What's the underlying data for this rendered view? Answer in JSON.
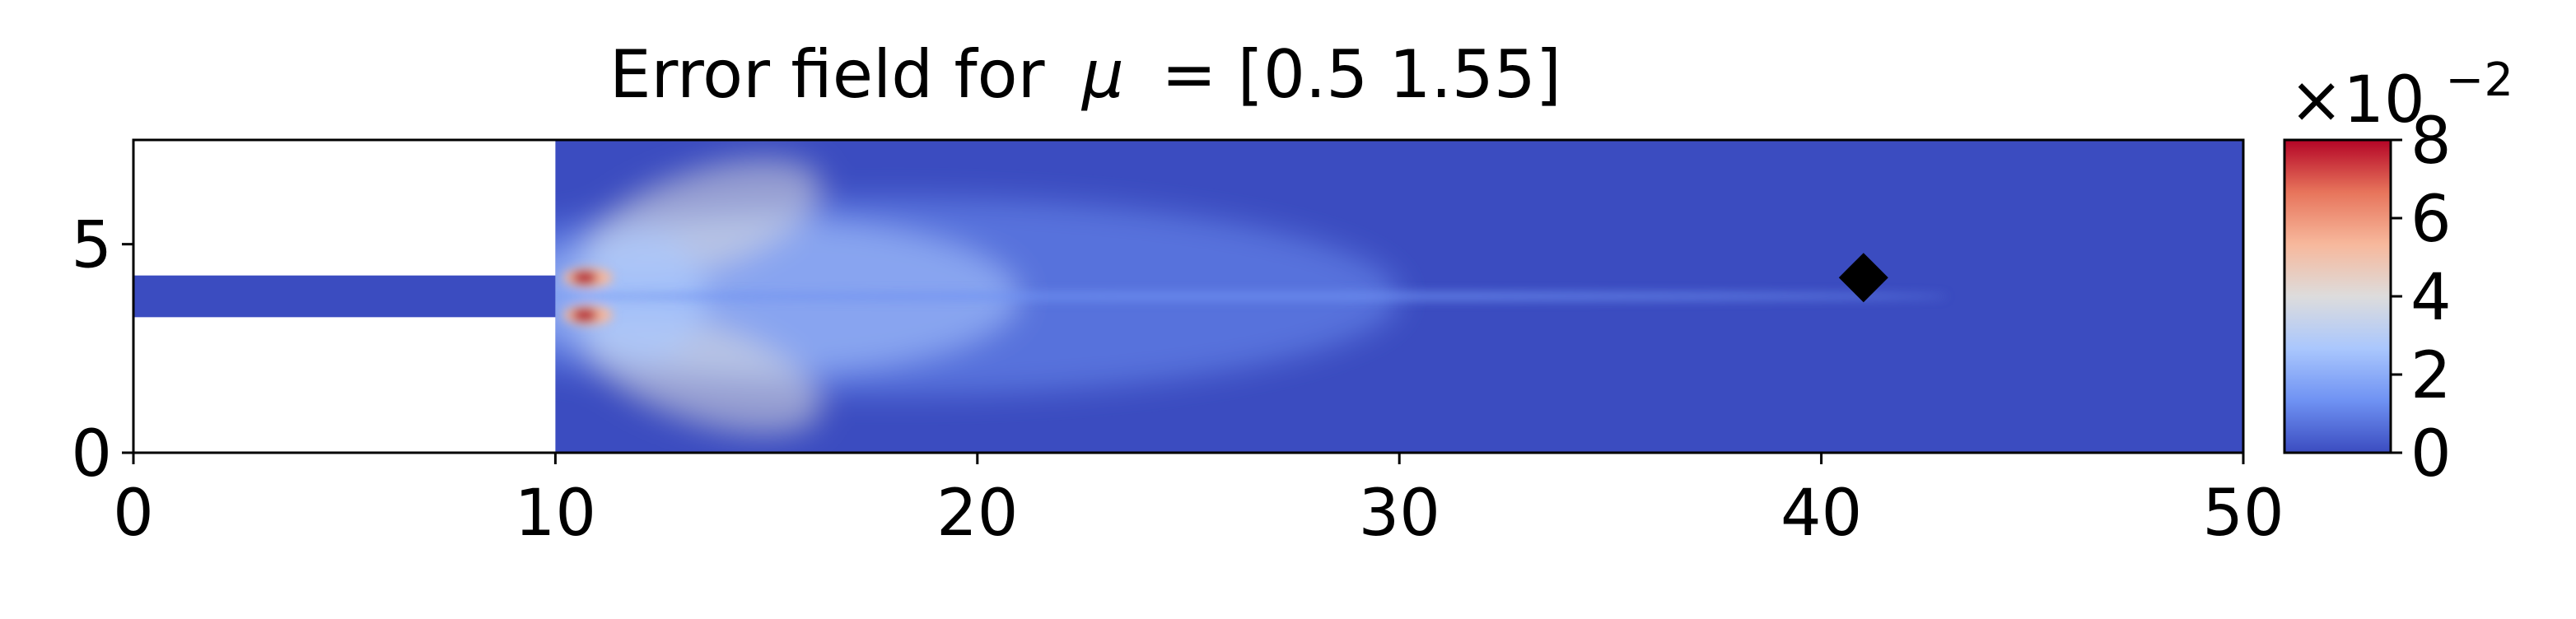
{
  "chart_data": {
    "type": "heatmap",
    "title": "Error field for",
    "title_symbol": "μ",
    "title_value": "= [0.5  1.55]",
    "xlim": [
      0,
      50
    ],
    "ylim": [
      0,
      7.5
    ],
    "xticks": [
      0,
      10,
      20,
      30,
      40,
      50
    ],
    "xtick_labels": [
      "0",
      "10",
      "20",
      "30",
      "40",
      "50"
    ],
    "yticks": [
      0,
      5
    ],
    "ytick_labels": [
      "0",
      "5"
    ],
    "colormap": "coolwarm",
    "colormap_colors": [
      "#3b4cc0",
      "#6f92f3",
      "#aac7fd",
      "#dddcdc",
      "#f7b89c",
      "#e7745b",
      "#b40426"
    ],
    "colorbar": {
      "range": [
        0,
        8
      ],
      "ticks": [
        0,
        2,
        4,
        6,
        8
      ],
      "tick_labels": [
        "0",
        "2",
        "4",
        "6",
        "8"
      ],
      "exponent_base": "×10",
      "exponent_power": "−2"
    },
    "domain": {
      "inlet_channel": {
        "x": [
          0,
          10
        ],
        "y": [
          3.25,
          4.25
        ]
      },
      "chamber": {
        "x": [
          10,
          50
        ],
        "y": [
          0,
          7.5
        ]
      }
    },
    "marker": {
      "shape": "diamond",
      "x": 41,
      "y": 4.2,
      "color": "#000000"
    },
    "hotspots": [
      {
        "x": 10.5,
        "y": 4.2,
        "value": 8
      },
      {
        "x": 10.5,
        "y": 3.3,
        "value": 8
      }
    ]
  }
}
